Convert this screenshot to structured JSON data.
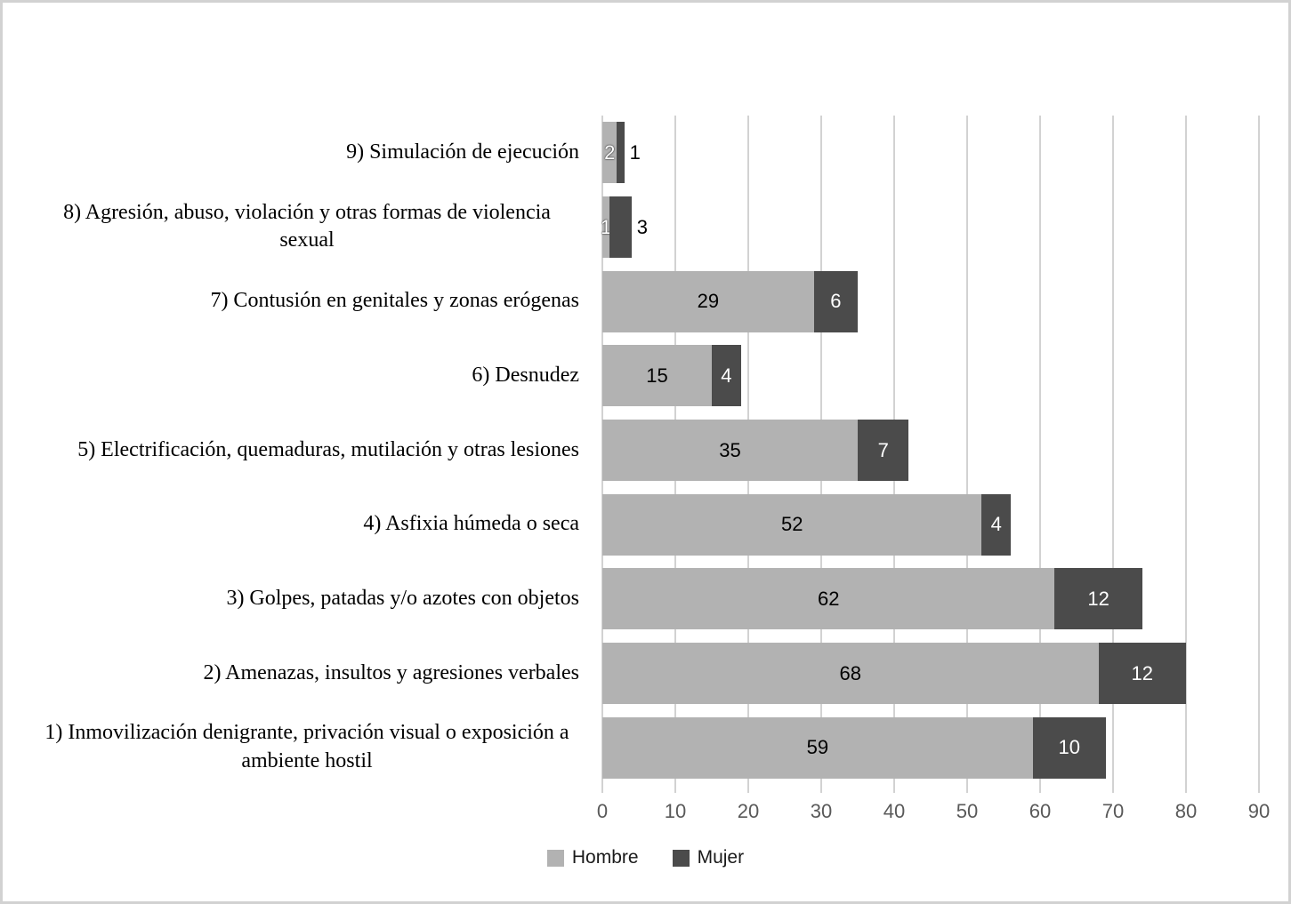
{
  "chart_data": {
    "type": "bar",
    "orientation": "horizontal",
    "stacked": true,
    "title": "",
    "categories": [
      "9) Simulación de ejecución",
      "8) Agresión, abuso, violación y otras formas de violencia sexual",
      "7) Contusión en genitales y zonas erógenas",
      "6) Desnudez",
      "5) Electrificación, quemaduras, mutilación y otras lesiones",
      "4) Asfixia húmeda o seca",
      "3) Golpes, patadas y/o azotes con objetos",
      "2) Amenazas, insultos y agresiones verbales",
      "1) Inmovilización denigrante, privación visual o exposición a ambiente hostil"
    ],
    "series": [
      {
        "name": "Hombre",
        "color": "#b2b2b2",
        "label_color": "#000000",
        "values": [
          2,
          1,
          29,
          15,
          35,
          52,
          62,
          68,
          59
        ]
      },
      {
        "name": "Mujer",
        "color": "#4b4b4b",
        "label_color": "#ffffff",
        "values": [
          1,
          3,
          6,
          4,
          7,
          4,
          12,
          12,
          10
        ]
      }
    ],
    "xlim": [
      0,
      90
    ],
    "x_ticks": [
      0,
      10,
      20,
      30,
      40,
      50,
      60,
      70,
      80,
      90
    ],
    "grid": true,
    "gridline_color": "#d2d2d2",
    "axis_label_color": "#595959",
    "category_label_color": "#000000",
    "legend_position": "bottom",
    "legend_labels": [
      "Hombre",
      "Mujer"
    ],
    "label_overrides": [
      {
        "row": 0,
        "series": 0,
        "color": "#ffffff",
        "halo": true
      },
      {
        "row": 0,
        "series": 1,
        "placement": "outside",
        "color": "#000000"
      },
      {
        "row": 1,
        "series": 0,
        "color": "#ffffff",
        "halo": true
      },
      {
        "row": 1,
        "series": 1,
        "placement": "outside",
        "color": "#000000"
      }
    ]
  }
}
